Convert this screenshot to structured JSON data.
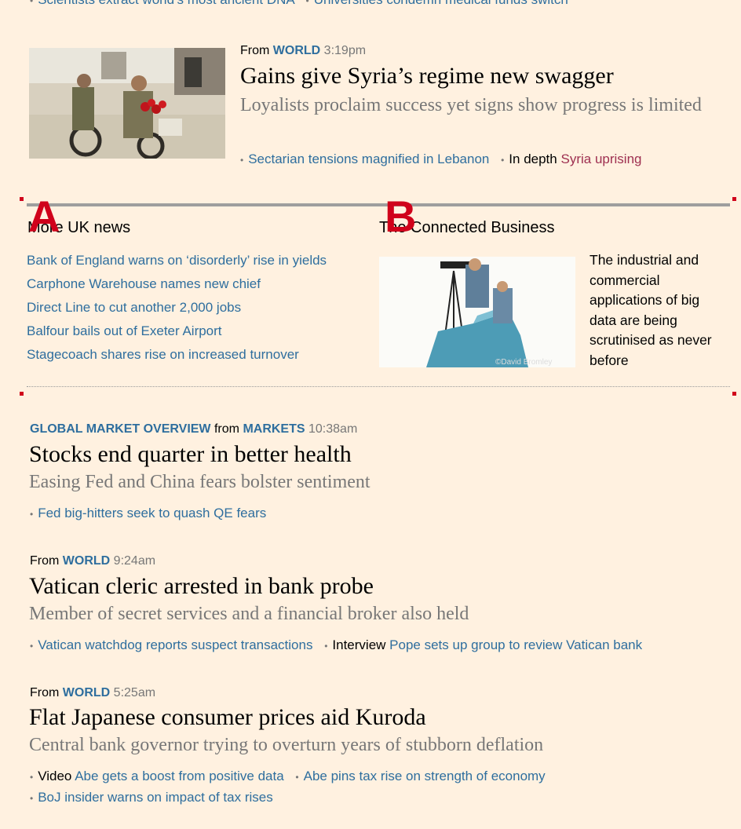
{
  "top_related": [
    "Scientists extract world’s most ancient DNA",
    "Universities condemn medical funds switch"
  ],
  "stories": [
    {
      "meta_prefix": "From",
      "section": "WORLD",
      "time": "3:19pm",
      "headline": "Gains give Syria’s regime new swagger",
      "standfirst": "Loyalists proclaim success yet signs show progress is limited",
      "related": [
        {
          "label": "",
          "text": "Sectarian tensions magnified in Lebanon"
        },
        {
          "label": "In depth",
          "text": "Syria uprising"
        }
      ]
    },
    {
      "meta_prefix": "from",
      "kicker": "GLOBAL MARKET OVERVIEW",
      "section": "MARKETS",
      "time": "10:38am",
      "headline": "Stocks end quarter in better health",
      "standfirst": "Easing Fed and China fears bolster sentiment",
      "related": [
        {
          "label": "",
          "text": "Fed big-hitters seek to quash QE fears"
        }
      ]
    },
    {
      "meta_prefix": "From",
      "section": "WORLD",
      "time": "9:24am",
      "headline": "Vatican cleric arrested in bank probe",
      "standfirst": "Member of secret services and a financial broker also held",
      "related": [
        {
          "label": "",
          "text": "Vatican watchdog reports suspect transactions"
        },
        {
          "label": "Interview",
          "text": "Pope sets up group to review Vatican bank"
        }
      ]
    },
    {
      "meta_prefix": "From",
      "section": "WORLD",
      "time": "5:25am",
      "headline": "Flat Japanese consumer prices aid Kuroda",
      "standfirst": "Central bank governor trying to overturn years of stubborn deflation",
      "related": [
        {
          "label": "Video",
          "text": "Abe gets a boost from positive data"
        },
        {
          "label": "",
          "text": "Abe pins tax rise on strength of economy"
        },
        {
          "label": "",
          "text": "BoJ insider warns on impact of tax rises"
        }
      ]
    }
  ],
  "markers": {
    "a": "A",
    "b": "B",
    "color": "#d0021b"
  },
  "uk_news": {
    "title": "More UK news",
    "items": [
      "Bank of England warns on ‘disorderly’ rise in yields",
      "Carphone Warehouse names new chief",
      "Direct Line to cut another 2,000 jobs",
      "Balfour bails out of Exeter Airport",
      "Stagecoach shares rise on increased turnover"
    ]
  },
  "connected_business": {
    "title": "The Connected Business",
    "description": "The industrial and commercial applications of big data are being scrutinised as never before",
    "image_credit": "©David Bromley"
  },
  "colors": {
    "background": "#fff1e0",
    "link": "#2e6e9e",
    "topic": "#9e2f50",
    "muted": "#777777"
  }
}
